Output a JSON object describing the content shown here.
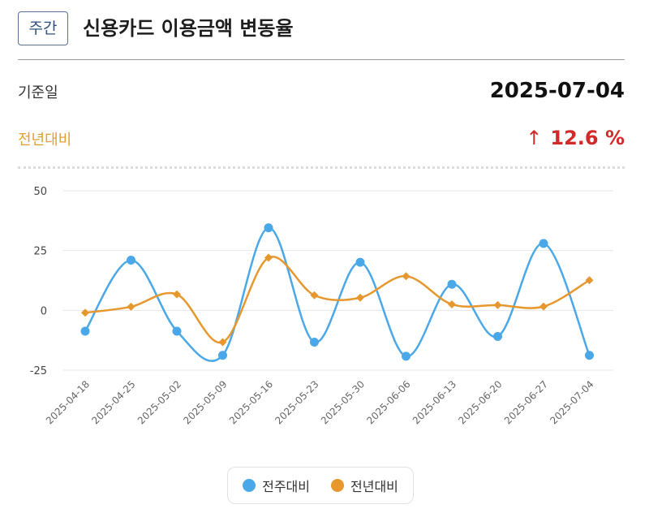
{
  "header": {
    "badge": "주간",
    "title": "신용카드 이용금액 변동율"
  },
  "summary": {
    "date_label": "기준일",
    "date_value": "2025-07-04",
    "yoy_label": "전년대비",
    "yoy_arrow": "↑",
    "yoy_value": "12.6 %"
  },
  "colors": {
    "wow": "#4aa8e8",
    "yoy": "#e6982e",
    "increase": "#d22a2a"
  },
  "chart_data": {
    "type": "line",
    "smooth": true,
    "categories": [
      "2025-04-18",
      "2025-04-25",
      "2025-05-02",
      "2025-05-09",
      "2025-05-16",
      "2025-05-23",
      "2025-05-30",
      "2025-06-06",
      "2025-06-13",
      "2025-06-20",
      "2025-06-27",
      "2025-07-04"
    ],
    "series": [
      {
        "name": "전주대비",
        "marker": "circle",
        "values": [
          -8.7,
          21.0,
          -8.7,
          -18.8,
          34.5,
          -13.3,
          20.1,
          -19.2,
          10.9,
          -10.9,
          28.0,
          -18.8
        ]
      },
      {
        "name": "전년대비",
        "marker": "diamond",
        "values": [
          -1.0,
          1.5,
          6.7,
          -13.3,
          22.0,
          6.3,
          5.3,
          14.3,
          2.5,
          2.2,
          1.6,
          12.6
        ]
      }
    ],
    "ylim": [
      -25,
      50
    ],
    "yticks": [
      "50",
      "25",
      "0",
      "-25"
    ],
    "grid": true,
    "legend": "bottom"
  }
}
